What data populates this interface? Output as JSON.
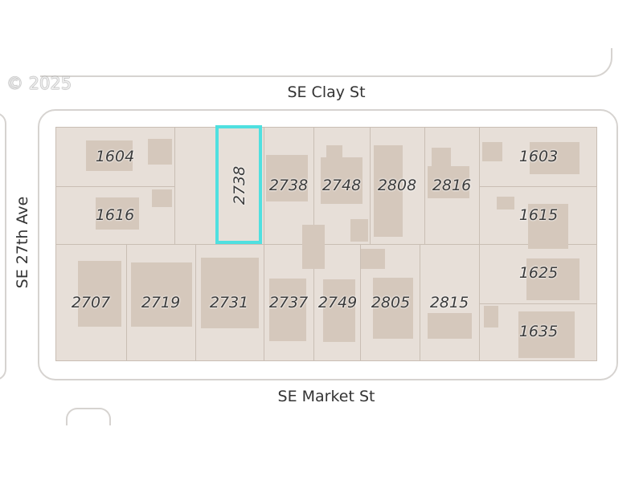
{
  "copyright": "© 2025",
  "streets": {
    "north": "SE Clay St",
    "south": "SE Market St",
    "west": "SE 27th Ave"
  },
  "highlight_color": "#4fe0e0",
  "selected_parcel": "2738",
  "parcels": {
    "p1604": "1604",
    "p1616": "1616",
    "p2738a": "2738",
    "p2738b": "2738",
    "p2748": "2748",
    "p2808": "2808",
    "p2816": "2816",
    "p1603": "1603",
    "p1615": "1615",
    "p2707": "2707",
    "p2719": "2719",
    "p2731": "2731",
    "p2737": "2737",
    "p2749": "2749",
    "p2805": "2805",
    "p2815": "2815",
    "p1625": "1625",
    "p1635": "1635"
  }
}
